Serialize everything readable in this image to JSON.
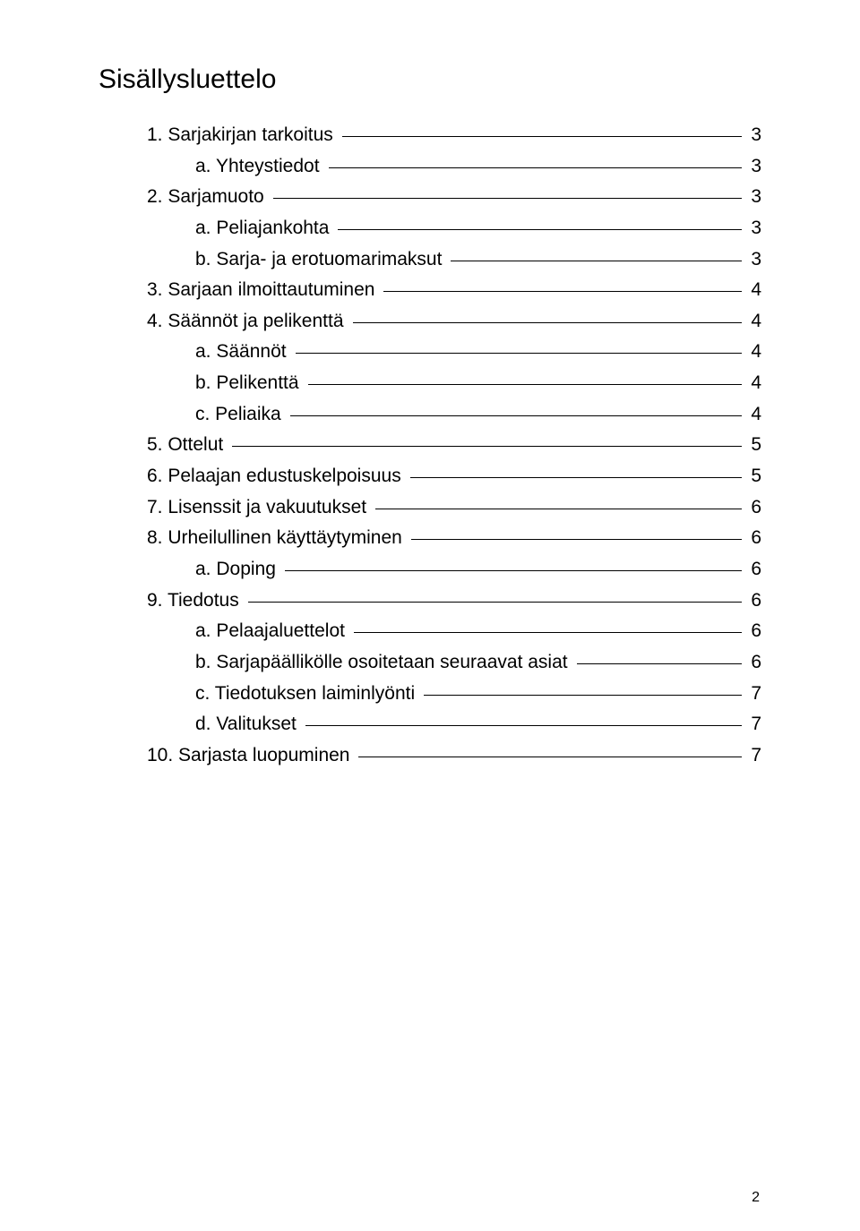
{
  "title": "Sisällysluettelo",
  "footer_page": "2",
  "entries": [
    {
      "level": 1,
      "label": "1. Sarjakirjan tarkoitus",
      "page": "3"
    },
    {
      "level": 2,
      "label": "a. Yhteystiedot",
      "page": "3"
    },
    {
      "level": 1,
      "label": "2. Sarjamuoto",
      "page": "3"
    },
    {
      "level": 2,
      "label": "a. Peliajankohta",
      "page": "3"
    },
    {
      "level": 2,
      "label": "b. Sarja- ja erotuomarimaksut",
      "page": "3"
    },
    {
      "level": 1,
      "label": "3. Sarjaan ilmoittautuminen",
      "page": "4"
    },
    {
      "level": 1,
      "label": "4. Säännöt ja pelikenttä",
      "page": "4"
    },
    {
      "level": 2,
      "label": "a. Säännöt",
      "page": "4"
    },
    {
      "level": 2,
      "label": "b. Pelikenttä",
      "page": "4"
    },
    {
      "level": 2,
      "label": "c. Peliaika",
      "page": "4"
    },
    {
      "level": 1,
      "label": "5. Ottelut",
      "page": "5"
    },
    {
      "level": 1,
      "label": "6. Pelaajan edustuskelpoisuus",
      "page": "5"
    },
    {
      "level": 1,
      "label": "7. Lisenssit ja vakuutukset",
      "page": "6"
    },
    {
      "level": 1,
      "label": "8. Urheilullinen käyttäytyminen",
      "page": "6"
    },
    {
      "level": 2,
      "label": "a. Doping",
      "page": "6"
    },
    {
      "level": 1,
      "label": "9. Tiedotus",
      "page": "6"
    },
    {
      "level": 2,
      "label": "a. Pelaajaluettelot",
      "page": "6"
    },
    {
      "level": 2,
      "label": "b. Sarjapäällikölle osoitetaan seuraavat asiat",
      "page": "6"
    },
    {
      "level": 2,
      "label": "c. Tiedotuksen laiminlyönti",
      "page": "7"
    },
    {
      "level": 2,
      "label": "d. Valitukset",
      "page": "7"
    },
    {
      "level": 1,
      "label": "10. Sarjasta luopuminen",
      "page": "7"
    }
  ]
}
